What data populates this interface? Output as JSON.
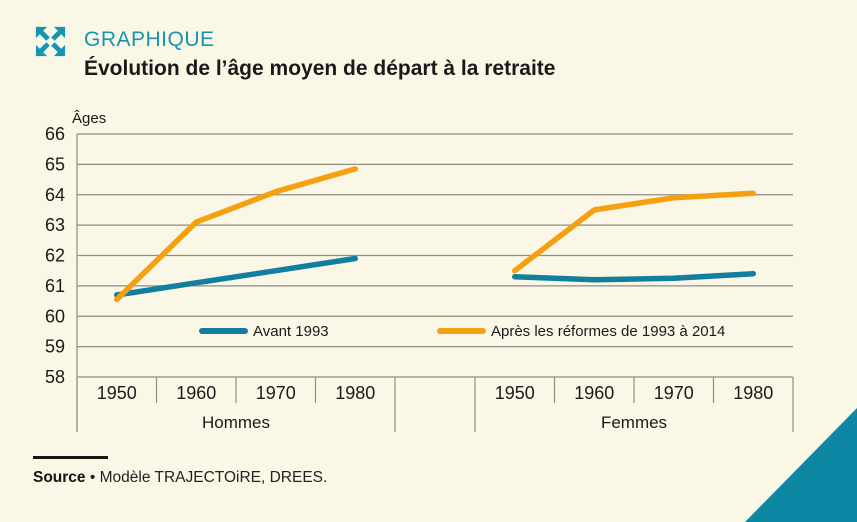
{
  "header": {
    "icon": "expand-arrows-icon",
    "kicker": "GRAPHIQUE",
    "title": "Évolution de l’âge moyen de départ à la retraite",
    "accent_color": "#1794B0"
  },
  "footer": {
    "source_label": "Source",
    "source_bullet": "•",
    "source_text": "Modèle TRAJECTOiRE, DREES."
  },
  "decoration": {
    "corner_triangle_color": "#0D87A4",
    "background_color": "#FBF7E6"
  },
  "chart_data": {
    "type": "line",
    "ylabel": "Âges",
    "ylim": [
      58,
      66
    ],
    "yticks": [
      58,
      59,
      60,
      61,
      62,
      63,
      64,
      65,
      66
    ],
    "grid": true,
    "grid_color": "#8E8E85",
    "categories": [
      "1950",
      "1960",
      "1970",
      "1980"
    ],
    "legend_position": "inside-bottom",
    "legend": [
      {
        "label": "Avant 1993",
        "color": "#127F9F"
      },
      {
        "label": "Après les réformes de 1993 à 2014",
        "color": "#F5A011"
      }
    ],
    "groups": [
      {
        "label": "Hommes",
        "series": [
          {
            "name": "Avant 1993",
            "color": "#127F9F",
            "values": [
              60.7,
              61.1,
              61.5,
              61.9
            ]
          },
          {
            "name": "Après les réformes de 1993 à 2014",
            "color": "#F5A011",
            "values": [
              60.55,
              63.1,
              64.1,
              64.85
            ]
          }
        ]
      },
      {
        "label": "Femmes",
        "series": [
          {
            "name": "Avant 1993",
            "color": "#127F9F",
            "values": [
              61.3,
              61.2,
              61.25,
              61.4
            ]
          },
          {
            "name": "Après les réformes de 1993 à 2014",
            "color": "#F5A011",
            "values": [
              61.5,
              63.5,
              63.9,
              64.05
            ]
          }
        ]
      }
    ]
  }
}
